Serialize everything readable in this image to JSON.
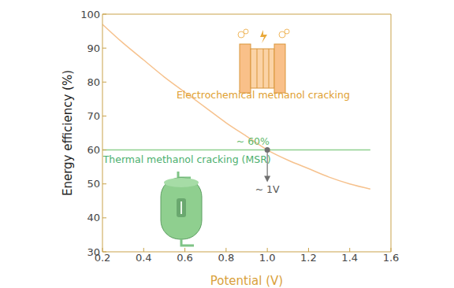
{
  "chart_data": {
    "type": "line",
    "x_label": "Potential (V)",
    "y_label": "Energy efficiency (%)",
    "xlim": [
      0.2,
      1.6
    ],
    "xticks": [
      0.2,
      0.4,
      0.6,
      0.8,
      {
        "value": 1,
        "label": "1.0"
      },
      1.2,
      1.4,
      1.6
    ],
    "ylim": [
      30,
      100
    ],
    "yticks": [
      30,
      40,
      50,
      60,
      70,
      80,
      90,
      100
    ],
    "grid": false,
    "series": [
      {
        "color": "#f6c28e",
        "x": [
          0.2,
          0.3,
          0.4,
          0.5,
          0.6,
          0.7,
          0.8,
          0.9,
          1.0,
          1.1,
          1.2,
          1.3,
          1.4,
          1.5
        ],
        "values": [
          97,
          91.5,
          86.5,
          81.5,
          77,
          72.5,
          68,
          64,
          60,
          57,
          54.5,
          52,
          50,
          48.5
        ]
      },
      {
        "color": "#8fd08f",
        "x": [
          0.2,
          1.5
        ],
        "values": [
          60,
          60
        ]
      }
    ],
    "intersection": {
      "x": 1.0,
      "y": 60,
      "color": "#707070"
    },
    "arrow": {
      "x": 1.0,
      "from": 60,
      "to": 51,
      "color": "#707070"
    },
    "annotations": [
      {
        "text": "~ 60%",
        "x": 0.93,
        "y": 62.3,
        "color": "#5fb86a"
      },
      {
        "text": "Thermal methanol cracking (MSR)",
        "x": 0.61,
        "y": 57,
        "color": "#4caf6e"
      },
      {
        "text": "Electrochemical methanol cracking",
        "x": 0.98,
        "y": 76,
        "color": "#e0a030"
      },
      {
        "text": "~ 1V",
        "x": 1.0,
        "y": 48.2,
        "color": "#555555"
      }
    ]
  }
}
